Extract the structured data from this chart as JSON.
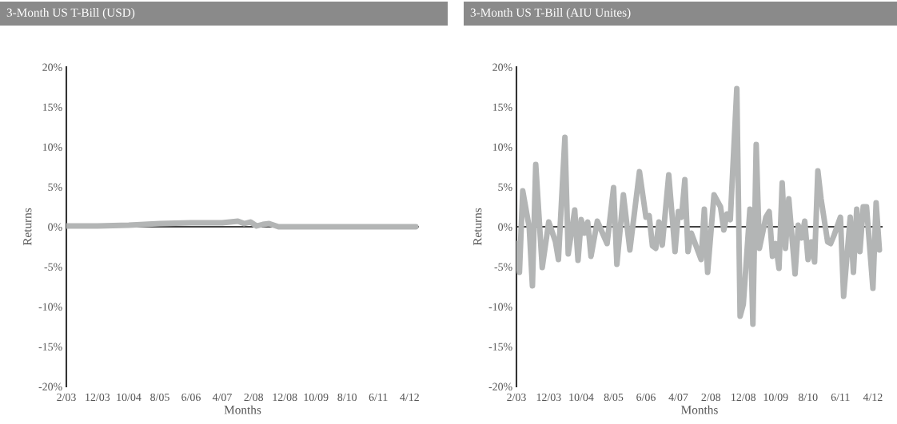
{
  "chart_data": [
    {
      "type": "line",
      "title": "3-Month US T-Bill (USD)",
      "xlabel": "Months",
      "ylabel": "Returns",
      "x": [
        "2003-02",
        "2003-12",
        "2004-10",
        "2005-08",
        "2006-06",
        "2007-04",
        "2007-09",
        "2007-11",
        "2008-01",
        "2008-03",
        "2008-05",
        "2008-07",
        "2008-10",
        "2009-10",
        "2012-06"
      ],
      "series": [
        {
          "color": "#b3b5b5",
          "values": [
            0.1,
            0.1,
            0.2,
            0.4,
            0.5,
            0.5,
            0.7,
            0.4,
            0.6,
            0.1,
            0.3,
            0.4,
            0.0,
            0.0,
            0.0
          ]
        }
      ],
      "xlim": [
        "2003-02",
        "2012-07"
      ],
      "xticks": [
        {
          "value": "2003-02",
          "label": "2/03"
        },
        {
          "value": "2003-12",
          "label": "12/03"
        },
        {
          "value": "2004-10",
          "label": "10/04"
        },
        {
          "value": "2005-08",
          "label": "8/05"
        },
        {
          "value": "2006-06",
          "label": "6/06"
        },
        {
          "value": "2007-04",
          "label": "4/07"
        },
        {
          "value": "2008-02",
          "label": "2/08"
        },
        {
          "value": "2008-12",
          "label": "12/08"
        },
        {
          "value": "2009-10",
          "label": "10/09"
        },
        {
          "value": "2010-08",
          "label": "8/10"
        },
        {
          "value": "2011-06",
          "label": "6/11"
        },
        {
          "value": "2012-04",
          "label": "4/12"
        }
      ],
      "ylim": [
        -20,
        20
      ],
      "yticks": [
        {
          "value": -20,
          "label": "-20%"
        },
        {
          "value": -15,
          "label": "-15%"
        },
        {
          "value": -10,
          "label": "-10%"
        },
        {
          "value": -5,
          "label": "-5%"
        },
        {
          "value": 0,
          "label": "0%"
        },
        {
          "value": 5,
          "label": "5%"
        },
        {
          "value": 10,
          "label": "10%"
        },
        {
          "value": 15,
          "label": "15%"
        },
        {
          "value": 20,
          "label": "20%"
        }
      ],
      "ref_lines": [
        {
          "axis": "y",
          "value": 0,
          "color": "#444444"
        }
      ],
      "grid": false
    },
    {
      "type": "line",
      "title": "3-Month US T-Bill (AIU Unites)",
      "xlabel": "Months",
      "ylabel": "Returns",
      "x": [
        "2003-02",
        "2003-03",
        "2003-04",
        "2003-06",
        "2003-07",
        "2003-08",
        "2003-10",
        "2003-12",
        "2004-02",
        "2004-03",
        "2004-05",
        "2004-06",
        "2004-08",
        "2004-09",
        "2004-10",
        "2004-11",
        "2004-12",
        "2005-01",
        "2005-03",
        "2005-06",
        "2005-08",
        "2005-09",
        "2005-11",
        "2006-01",
        "2006-04",
        "2006-06",
        "2006-07",
        "2006-08",
        "2006-09",
        "2006-10",
        "2006-11",
        "2007-01",
        "2007-03",
        "2007-04",
        "2007-05",
        "2007-06",
        "2007-07",
        "2007-08",
        "2007-11",
        "2007-12",
        "2008-01",
        "2008-03",
        "2008-05",
        "2008-06",
        "2008-07",
        "2008-08",
        "2008-10",
        "2008-11",
        "2008-12",
        "2009-02",
        "2009-03",
        "2009-04",
        "2009-05",
        "2009-07",
        "2009-08",
        "2009-09",
        "2009-10",
        "2009-11",
        "2009-12",
        "2010-01",
        "2010-02",
        "2010-04",
        "2010-05",
        "2010-06",
        "2010-07",
        "2010-08",
        "2010-09",
        "2010-10",
        "2010-11",
        "2010-12",
        "2011-02",
        "2011-03",
        "2011-04",
        "2011-06",
        "2011-07",
        "2011-09",
        "2011-10",
        "2011-11",
        "2011-12",
        "2012-01",
        "2012-02",
        "2012-04",
        "2012-05",
        "2012-06"
      ],
      "series": [
        {
          "color": "#b3b5b5",
          "values": [
            -2.1,
            -5.7,
            4.5,
            -0.1,
            -7.4,
            7.8,
            -5.1,
            0.6,
            -1.8,
            -4.1,
            11.2,
            -3.4,
            2.1,
            -4.2,
            0.9,
            -0.8,
            0.6,
            -3.7,
            0.7,
            -2.1,
            4.9,
            -4.7,
            4.0,
            -2.9,
            6.9,
            1.2,
            1.4,
            -2.4,
            -2.7,
            0.6,
            -2.3,
            6.5,
            -3.1,
            1.9,
            1.2,
            5.9,
            -3.1,
            -0.8,
            -4.1,
            2.2,
            -5.7,
            4.0,
            2.5,
            -0.4,
            1.6,
            0.9,
            17.3,
            -11.2,
            -9.7,
            2.2,
            -12.2,
            10.3,
            -2.7,
            1.2,
            1.9,
            -3.7,
            -2.1,
            -5.2,
            5.5,
            -2.7,
            3.5,
            -5.9,
            0.2,
            -1.4,
            0.7,
            -4.1,
            -1.9,
            -4.4,
            7.0,
            3.5,
            -1.9,
            -2.1,
            -1.1,
            1.2,
            -8.7,
            1.2,
            -5.7,
            2.2,
            -3.1,
            2.5,
            2.5,
            -7.7,
            3.0,
            -2.9
          ]
        }
      ],
      "xlim": [
        "2003-02",
        "2012-07"
      ],
      "xticks": [
        {
          "value": "2003-02",
          "label": "2/03"
        },
        {
          "value": "2003-12",
          "label": "12/03"
        },
        {
          "value": "2004-10",
          "label": "10/04"
        },
        {
          "value": "2005-08",
          "label": "8/05"
        },
        {
          "value": "2006-06",
          "label": "6/06"
        },
        {
          "value": "2007-04",
          "label": "4/07"
        },
        {
          "value": "2008-02",
          "label": "2/08"
        },
        {
          "value": "2008-12",
          "label": "12/08"
        },
        {
          "value": "2009-10",
          "label": "10/09"
        },
        {
          "value": "2010-08",
          "label": "8/10"
        },
        {
          "value": "2011-06",
          "label": "6/11"
        },
        {
          "value": "2012-04",
          "label": "4/12"
        }
      ],
      "ylim": [
        -20,
        20
      ],
      "yticks": [
        {
          "value": -20,
          "label": "-20%"
        },
        {
          "value": -15,
          "label": "-15%"
        },
        {
          "value": -10,
          "label": "-10%"
        },
        {
          "value": -5,
          "label": "-5%"
        },
        {
          "value": 0,
          "label": "0%"
        },
        {
          "value": 5,
          "label": "5%"
        },
        {
          "value": 10,
          "label": "10%"
        },
        {
          "value": 15,
          "label": "15%"
        },
        {
          "value": 20,
          "label": "20%"
        }
      ],
      "ref_lines": [
        {
          "axis": "y",
          "value": 0,
          "color": "#444444"
        }
      ],
      "grid": false
    }
  ]
}
